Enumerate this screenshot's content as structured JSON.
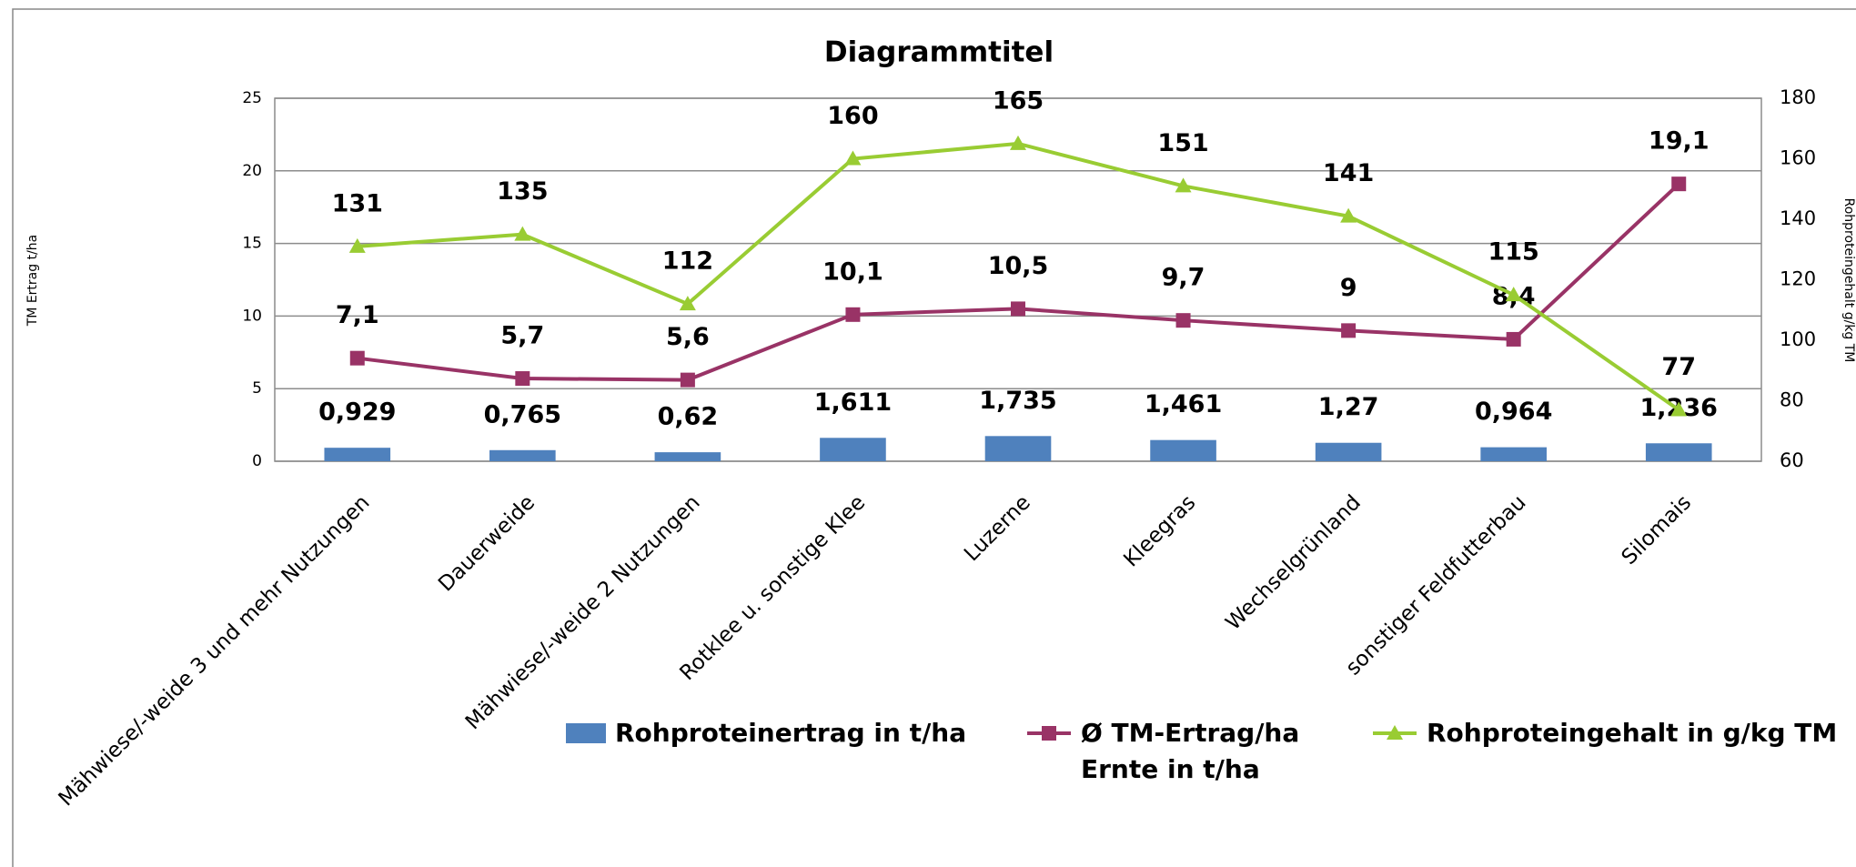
{
  "chart_data": {
    "type": "combo",
    "title": "Diagrammtitel",
    "y_label": "TM Ertrag t/ha",
    "y2_label": "Rohproteingehalt g/kg TM",
    "categories": [
      "Mähwiese/-weide 3 und mehr Nutzungen",
      "Dauerweide",
      "Mähwiese/-weide 2 Nutzungen",
      "Rotklee u. sonstige Klee",
      "Luzerne",
      "Kleegras",
      "Wechselgrünland",
      "sonstiger Feldfutterbau",
      "Silomais"
    ],
    "series": [
      {
        "name": "Rohproteinertrag in t/ha",
        "type": "bar",
        "color": "#4f81bd",
        "axis": "y",
        "values": [
          0.929,
          0.765,
          0.62,
          1.611,
          1.735,
          1.461,
          1.27,
          0.964,
          1.236
        ],
        "value_labels": [
          "0,929",
          "0,765",
          "0,62",
          "1,611",
          "1,735",
          "1,461",
          "1,27",
          "0,964",
          "1,236"
        ]
      },
      {
        "name": "Ø TM-Ertrag/ha Ernte in t/ha",
        "type": "line",
        "marker": "square",
        "color": "#993366",
        "axis": "y",
        "values": [
          7.1,
          5.7,
          5.6,
          10.1,
          10.5,
          9.7,
          9,
          8.4,
          19.1
        ],
        "value_labels": [
          "7,1",
          "5,7",
          "5,6",
          "10,1",
          "10,5",
          "9,7",
          "9",
          "8,4",
          "19,1"
        ]
      },
      {
        "name": "Rohproteingehalt in g/kg TM",
        "type": "line",
        "marker": "triangle",
        "color": "#99cc33",
        "axis": "y2",
        "values": [
          131,
          135,
          112,
          160,
          165,
          151,
          141,
          115,
          77
        ]
      }
    ],
    "ylim": [
      0,
      25
    ],
    "yticks": [
      0,
      5,
      10,
      15,
      20,
      25
    ],
    "y2lim": [
      60,
      180
    ],
    "y2ticks": [
      60,
      80,
      100,
      120,
      140,
      160,
      180
    ],
    "grid": true,
    "legend": "bottom"
  }
}
